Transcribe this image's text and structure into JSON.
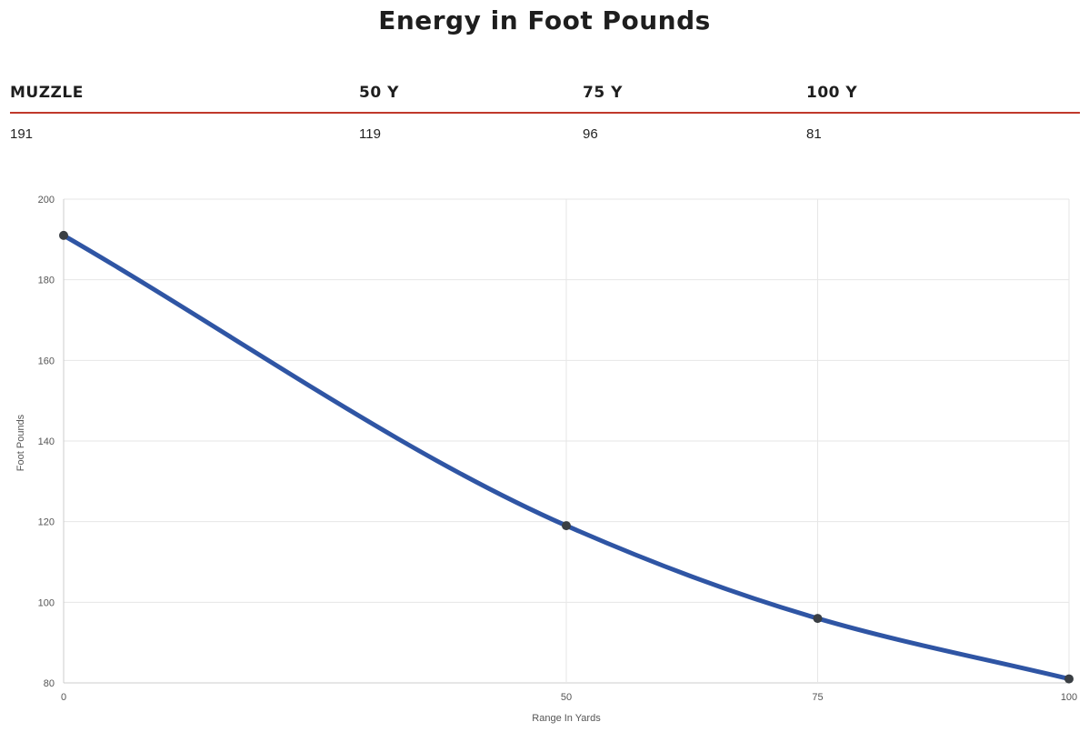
{
  "title": "Energy in Foot Pounds",
  "table": {
    "headers": [
      "MUZZLE",
      "50 Y",
      "75 Y",
      "100 Y"
    ],
    "values": [
      "191",
      "119",
      "96",
      "81"
    ]
  },
  "chart_data": {
    "type": "line",
    "xlabel": "Range In Yards",
    "ylabel": "Foot Pounds",
    "x": [
      0,
      50,
      75,
      100
    ],
    "x_ticks": [
      "0",
      "50",
      "75",
      "100"
    ],
    "y_ticks": [
      "200",
      "180",
      "160",
      "140",
      "120",
      "100",
      "80"
    ],
    "xlim": [
      0,
      100
    ],
    "ylim": [
      80,
      200
    ],
    "grid": true,
    "series": [
      {
        "values": [
          191,
          119,
          96,
          81
        ],
        "color": "#2f55a4",
        "marker_color": "#3a3f44"
      }
    ]
  }
}
